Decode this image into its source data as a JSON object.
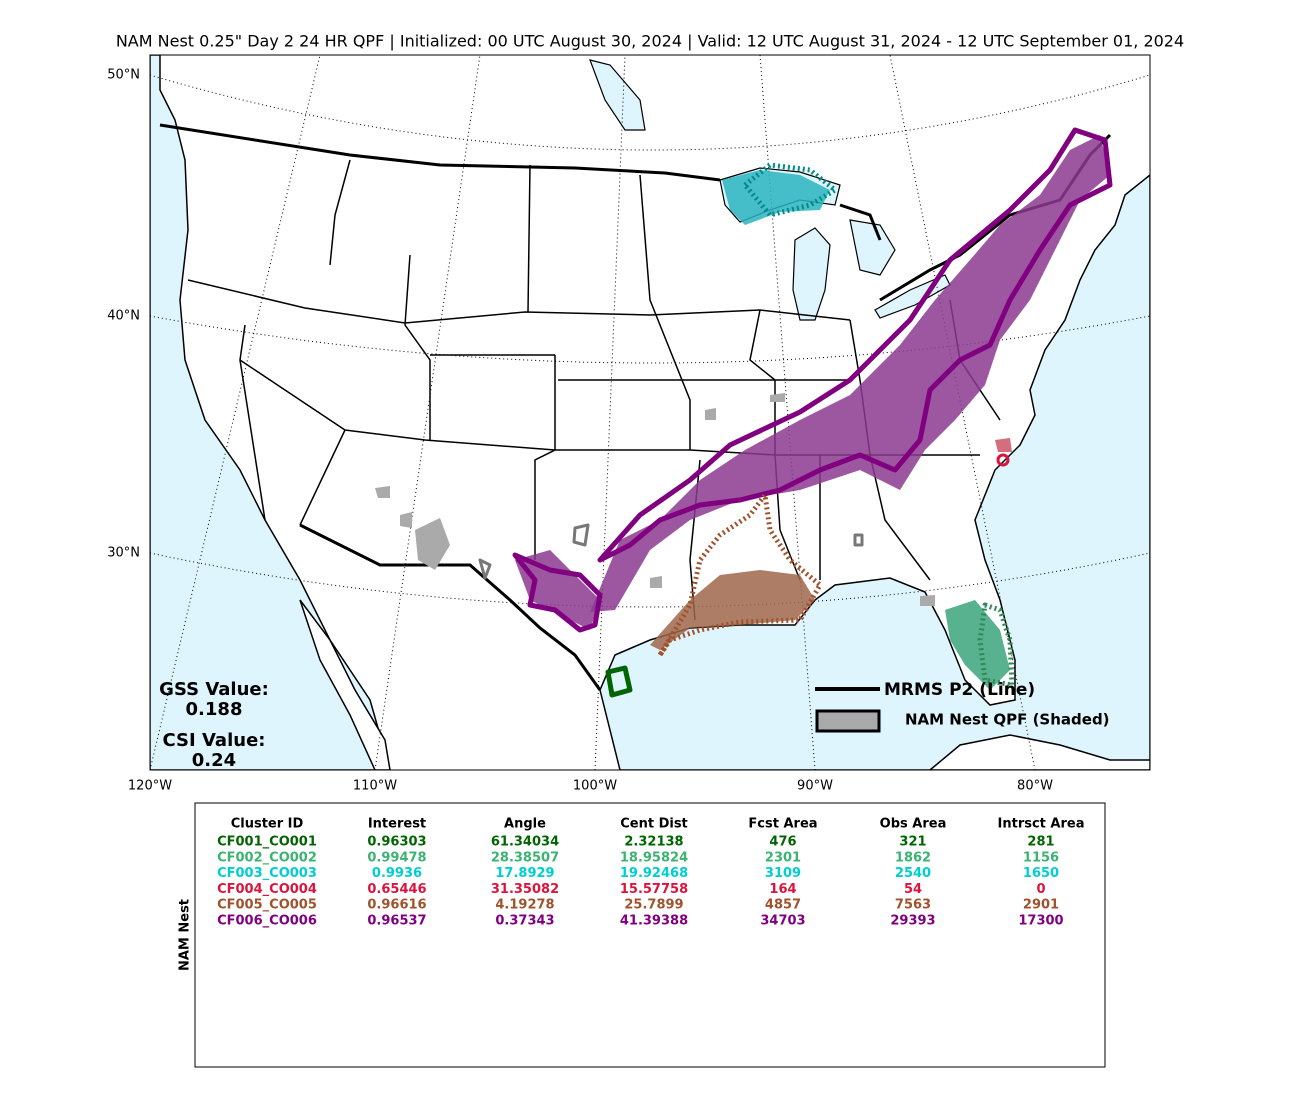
{
  "title": "NAM Nest 0.25\" Day 2 24 HR QPF | Initialized: 00 UTC August 30, 2024 | Valid: 12 UTC August 31, 2024 - 12 UTC September 01, 2024",
  "map": {
    "lat_labels": [
      "50°N",
      "40°N",
      "30°N"
    ],
    "lon_labels": [
      "120°W",
      "110°W",
      "100°W",
      "90°W",
      "80°W"
    ],
    "legend": {
      "line": "MRMS P2 (Line)",
      "shaded": "NAM Nest QPF (Shaded)"
    },
    "stats": {
      "gss_label": "GSS Value:",
      "gss": 0.188,
      "csi_label": "CSI Value:",
      "csi": 0.24
    }
  },
  "table": {
    "side_label": "NAM Nest",
    "columns": [
      "Cluster ID",
      "Interest",
      "Angle",
      "Cent Dist",
      "Fcst Area",
      "Obs Area",
      "Intrsct Area"
    ],
    "row_colors": [
      "#006400",
      "#3cb371",
      "#00ced1",
      "#dc143c",
      "#a0522d",
      "#800080"
    ],
    "rows": [
      [
        "CF001_CO001",
        0.96303,
        61.34034,
        2.32138,
        476,
        321,
        281
      ],
      [
        "CF002_CO002",
        0.99478,
        28.38507,
        18.95824,
        2301,
        1862,
        1156
      ],
      [
        "CF003_CO003",
        0.9936,
        17.8929,
        19.92468,
        3109,
        2540,
        1650
      ],
      [
        "CF004_CO004",
        0.65446,
        31.35082,
        15.57758,
        164,
        54,
        0
      ],
      [
        "CF005_CO005",
        0.96616,
        4.19278,
        25.7899,
        4857,
        7563,
        2901
      ],
      [
        "CF006_CO006",
        0.96537,
        0.37343,
        41.39388,
        34703,
        29393,
        17300
      ]
    ]
  }
}
